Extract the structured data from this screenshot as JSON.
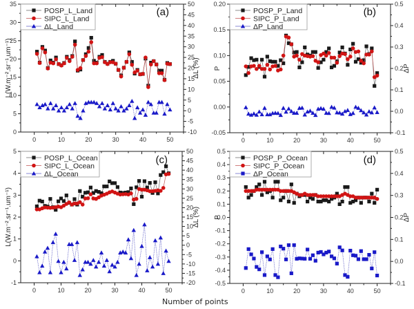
{
  "figure": {
    "xlabel": "Number of points"
  },
  "chart_data": [
    {
      "type": "line",
      "panel": "(a)",
      "xlim": [
        -5,
        55
      ],
      "xticks": [
        0,
        10,
        20,
        30,
        40,
        50
      ],
      "ylabel": "L(W.m-2.sr-1.um-1)",
      "ylim": [
        0,
        35
      ],
      "yticks": [
        0,
        5,
        10,
        15,
        20,
        25,
        30,
        35
      ],
      "y2label": "ΔL (%)",
      "y2lim": [
        -10,
        50
      ],
      "y2ticks": [
        -10,
        -5,
        0,
        5,
        10,
        15,
        20,
        25,
        30,
        35,
        40,
        45,
        50
      ],
      "legend_position": "top-left",
      "series": [
        {
          "name": "POSP_L_Land",
          "axis": "left",
          "marker": "square",
          "color": "#1a1a1a",
          "values": [
            22.0,
            19.0,
            23.3,
            22.3,
            17.5,
            19.6,
            19.0,
            20.4,
            18.6,
            18.3,
            18.9,
            20.6,
            19.7,
            20.8,
            24.8,
            16.8,
            17.1,
            19.7,
            21.3,
            23.0,
            25.8,
            19.5,
            19.0,
            20.6,
            21.1,
            19.2,
            18.7,
            19.2,
            19.5,
            18.7,
            17.0,
            15.5,
            17.6,
            19.2,
            21.8,
            19.2,
            16.0,
            17.0,
            15.8,
            15.9,
            20.1,
            12.7,
            19.0,
            19.4,
            18.5,
            16.8,
            16.8,
            14.3,
            18.9,
            18.6
          ]
        },
        {
          "name": "SIPC_L_Land",
          "axis": "left",
          "marker": "circle",
          "color": "#d11414",
          "values": [
            21.4,
            18.9,
            22.9,
            21.8,
            17.4,
            19.0,
            18.8,
            19.9,
            18.6,
            18.2,
            18.8,
            20.3,
            19.4,
            20.6,
            23.9,
            17.0,
            17.5,
            19.7,
            20.8,
            22.0,
            24.6,
            18.8,
            18.8,
            20.3,
            20.5,
            19.1,
            18.6,
            19.1,
            19.1,
            18.7,
            17.0,
            15.2,
            17.6,
            19.2,
            21.3,
            18.4,
            16.3,
            16.8,
            15.8,
            15.9,
            20.4,
            12.3,
            18.5,
            19.4,
            18.5,
            16.1,
            16.1,
            14.2,
            18.7,
            18.6
          ]
        },
        {
          "name": "ΔL_Land",
          "axis": "right",
          "marker": "triangle",
          "color": "#1a1ac8",
          "values": [
            3.0,
            1.5,
            2.5,
            3.0,
            1.0,
            3.5,
            1.0,
            2.5,
            0.0,
            1.5,
            0.0,
            1.5,
            3.0,
            1.0,
            3.5,
            -2.5,
            -3.5,
            0.0,
            3.5,
            4.0,
            4.0,
            4.0,
            3.5,
            2.0,
            3.5,
            1.0,
            2.5,
            0.5,
            3.5,
            1.0,
            0.0,
            2.0,
            0.0,
            1.0,
            2.5,
            4.5,
            -3.5,
            1.5,
            -1.0,
            0.5,
            -2.0,
            4.0,
            3.0,
            -1.0,
            -1.0,
            4.0,
            4.0,
            -1.5,
            3.0,
            0.5
          ]
        }
      ]
    },
    {
      "type": "line",
      "panel": "(b)",
      "xlim": [
        -5,
        55
      ],
      "xticks": [
        0,
        10,
        20,
        30,
        40,
        50
      ],
      "ylabel": "P",
      "ylim": [
        -0.05,
        0.2
      ],
      "yticks": [
        "-0.05",
        "0.00",
        "0.05",
        "0.10",
        "0.15",
        "0.20"
      ],
      "y2label": "ΔP",
      "y2lim": [
        -0.1,
        0.5
      ],
      "y2ticks": [
        "-0.1",
        "0.0",
        "0.1",
        "0.2",
        "0.3",
        "0.4",
        "0.5"
      ],
      "legend_position": "top-left",
      "series": [
        {
          "name": "POSP_P_Land",
          "axis": "left",
          "marker": "square",
          "color": "#1a1a1a",
          "values": [
            0.062,
            0.078,
            0.095,
            0.091,
            0.092,
            0.078,
            0.092,
            0.059,
            0.098,
            0.089,
            0.088,
            0.088,
            0.08,
            0.091,
            0.085,
            0.139,
            0.124,
            0.122,
            0.106,
            0.107,
            0.077,
            0.087,
            0.116,
            0.102,
            0.1,
            0.107,
            0.107,
            0.076,
            0.087,
            0.092,
            0.107,
            0.114,
            0.077,
            0.08,
            0.089,
            0.106,
            0.116,
            0.104,
            0.082,
            0.112,
            0.123,
            0.088,
            0.093,
            0.086,
            0.091,
            0.118,
            0.103,
            0.114,
            0.041,
            0.066
          ]
        },
        {
          "name": "SIPC_P_Land",
          "axis": "left",
          "marker": "circle",
          "color": "#d11414",
          "values": [
            0.079,
            0.066,
            0.079,
            0.08,
            0.074,
            0.08,
            0.074,
            0.074,
            0.082,
            0.073,
            0.079,
            0.08,
            0.071,
            0.073,
            0.1,
            0.137,
            0.135,
            0.122,
            0.098,
            0.1,
            0.092,
            0.103,
            0.1,
            0.099,
            0.098,
            0.099,
            0.09,
            0.087,
            0.101,
            0.104,
            0.1,
            0.105,
            0.096,
            0.096,
            0.086,
            0.099,
            0.104,
            0.103,
            0.093,
            0.098,
            0.114,
            0.107,
            0.108,
            0.09,
            0.085,
            0.102,
            0.102,
            0.108,
            0.058,
            0.061
          ]
        },
        {
          "name": "ΔP_Land",
          "axis": "right",
          "marker": "triangle",
          "color": "#1a1ac8",
          "values": [
            0.018,
            -0.012,
            -0.017,
            -0.011,
            -0.017,
            -0.002,
            -0.015,
            0.015,
            -0.015,
            -0.015,
            -0.009,
            -0.008,
            -0.009,
            -0.018,
            0.015,
            -0.003,
            0.012,
            0.0,
            -0.008,
            -0.008,
            0.015,
            0.016,
            -0.016,
            -0.002,
            0.002,
            -0.008,
            -0.018,
            0.011,
            0.014,
            0.011,
            -0.008,
            -0.009,
            0.02,
            0.016,
            -0.006,
            -0.007,
            -0.012,
            0.0,
            0.005,
            -0.014,
            -0.009,
            0.02,
            0.015,
            0.004,
            -0.006,
            -0.016,
            -0.001,
            -0.006,
            0.017,
            -0.005
          ]
        }
      ]
    },
    {
      "type": "line",
      "panel": "(c)",
      "xlim": [
        -5,
        55
      ],
      "xticks": [
        0,
        10,
        20,
        30,
        40,
        50
      ],
      "ylabel": "L(W.m-2.sr-1.um-1)",
      "ylim": [
        -1,
        5
      ],
      "yticks": [
        -1,
        0,
        1,
        2,
        3,
        4,
        5
      ],
      "y2label": "ΔL (%)",
      "y2lim": [
        -20,
        50
      ],
      "y2ticks": [
        -20,
        -15,
        -10,
        -5,
        0,
        5,
        10,
        15,
        20,
        25,
        30,
        35,
        40,
        45,
        50
      ],
      "legend_position": "top-left",
      "series": [
        {
          "name": "POSP_L_Ocean",
          "axis": "left",
          "marker": "square",
          "color": "#1a1a1a",
          "values": [
            2.49,
            2.75,
            2.71,
            2.51,
            2.48,
            2.83,
            2.45,
            2.33,
            2.72,
            2.85,
            2.73,
            2.99,
            2.65,
            2.57,
            2.82,
            2.57,
            3.19,
            2.93,
            3.11,
            3.13,
            3.35,
            3.1,
            3.19,
            3.15,
            3.09,
            3.4,
            3.4,
            3.63,
            3.55,
            3.55,
            3.37,
            3.12,
            3.1,
            3.12,
            3.14,
            3.31,
            2.59,
            3.36,
            3.65,
            2.93,
            3.64,
            3.35,
            3.56,
            3.1,
            3.59,
            3.08,
            3.92,
            4.05,
            4.32,
            4.0
          ]
        },
        {
          "name": "SIPC_L_Ocean",
          "axis": "left",
          "marker": "circle",
          "color": "#d11414",
          "values": [
            2.35,
            2.35,
            2.4,
            2.44,
            2.43,
            2.42,
            2.43,
            2.45,
            2.48,
            2.45,
            2.52,
            2.6,
            2.67,
            2.57,
            2.62,
            2.62,
            2.68,
            2.57,
            2.85,
            2.86,
            3.04,
            2.85,
            2.83,
            2.9,
            2.98,
            3.02,
            3.07,
            3.13,
            3.17,
            3.12,
            3.07,
            3.03,
            3.04,
            3.05,
            3.03,
            3.08,
            2.8,
            2.83,
            3.28,
            3.25,
            3.25,
            3.22,
            3.18,
            3.18,
            3.2,
            3.22,
            3.2,
            3.33,
            3.95,
            3.97
          ]
        },
        {
          "name": "ΔL_Ocean",
          "axis": "right",
          "marker": "triangle",
          "color": "#1a1ac8",
          "values": [
            -6.0,
            -14.5,
            -11.0,
            -3.5,
            -1.5,
            -14.5,
            1.5,
            6.0,
            -8.5,
            -14.5,
            -9.0,
            -12.5,
            0.5,
            0.5,
            -8.0,
            1.5,
            -16.0,
            -13.0,
            -9.0,
            -9.0,
            -10.0,
            -8.0,
            -11.5,
            -9.0,
            -4.0,
            -11.0,
            -8.0,
            -14.0,
            -10.5,
            -11.5,
            -9.0,
            -4.0,
            -3.5,
            -4.0,
            3.0,
            -7.0,
            8.0,
            -16.0,
            -10.0,
            -0.5,
            11.0,
            -13.5,
            -6.5,
            -11.5,
            2.5,
            -10.0,
            4.0,
            -15.0,
            -3.0,
            -8.5
          ]
        }
      ]
    },
    {
      "type": "line",
      "panel": "(d)",
      "xlim": [
        -5,
        55
      ],
      "xticks": [
        0,
        10,
        20,
        30,
        40,
        50
      ],
      "ylabel": "P",
      "ylim": [
        -0.5,
        0.5
      ],
      "yticks": [
        "-0.5",
        "-0.4",
        "-0.3",
        "-0.2",
        "-0.1",
        "0.0",
        "0.1",
        "0.2",
        "0.3",
        "0.4",
        "0.5"
      ],
      "y2label": "ΔP",
      "y2lim": [
        -0.1,
        0.5
      ],
      "y2ticks": [
        "-0.1",
        "0.0",
        "0.1",
        "0.2",
        "0.3",
        "0.4",
        "0.5"
      ],
      "legend_position": "top-left",
      "series": [
        {
          "name": "POSP_P_Ocean",
          "axis": "left",
          "marker": "square",
          "color": "#1a1a1a",
          "values": [
            0.23,
            0.15,
            0.17,
            0.2,
            0.23,
            0.25,
            0.17,
            0.27,
            0.19,
            0.2,
            0.15,
            0.27,
            0.27,
            0.13,
            0.15,
            0.2,
            0.12,
            0.25,
            0.11,
            0.18,
            0.16,
            0.17,
            0.17,
            0.12,
            0.15,
            0.14,
            0.17,
            0.12,
            0.12,
            0.13,
            0.13,
            0.12,
            0.14,
            0.15,
            0.18,
            0.1,
            0.12,
            0.23,
            0.23,
            0.11,
            0.12,
            0.13,
            0.15,
            0.11,
            0.15,
            0.15,
            0.12,
            0.18,
            0.11,
            0.21
          ]
        },
        {
          "name": "SIPC_P_Ocean",
          "axis": "left",
          "marker": "circle",
          "color": "#d11414",
          "values": [
            0.2,
            0.2,
            0.2,
            0.2,
            0.21,
            0.21,
            0.21,
            0.21,
            0.21,
            0.21,
            0.21,
            0.21,
            0.21,
            0.2,
            0.2,
            0.2,
            0.2,
            0.2,
            0.19,
            0.18,
            0.17,
            0.17,
            0.18,
            0.17,
            0.17,
            0.17,
            0.17,
            0.16,
            0.16,
            0.16,
            0.16,
            0.16,
            0.16,
            0.16,
            0.16,
            0.16,
            0.17,
            0.18,
            0.17,
            0.16,
            0.16,
            0.15,
            0.15,
            0.15,
            0.15,
            0.15,
            0.15,
            0.15,
            0.15,
            0.14
          ]
        },
        {
          "name": "ΔP_Ocean",
          "axis": "right",
          "marker": "square",
          "color": "#1a1ac8",
          "values": [
            -0.03,
            0.056,
            0.032,
            0.013,
            -0.025,
            -0.036,
            0.042,
            -0.062,
            0.023,
            0.009,
            0.056,
            -0.062,
            -0.072,
            0.068,
            0.058,
            0.009,
            0.074,
            -0.054,
            0.074,
            0.012,
            0.014,
            0.013,
            0.012,
            0.054,
            0.012,
            0.028,
            0.003,
            0.04,
            0.043,
            0.032,
            0.04,
            0.045,
            0.023,
            0.014,
            -0.01,
            0.064,
            0.05,
            -0.062,
            -0.07,
            0.049,
            0.028,
            0.026,
            0.01,
            0.047,
            0.01,
            0.01,
            0.03,
            -0.032,
            0.042,
            -0.064
          ]
        }
      ]
    }
  ]
}
